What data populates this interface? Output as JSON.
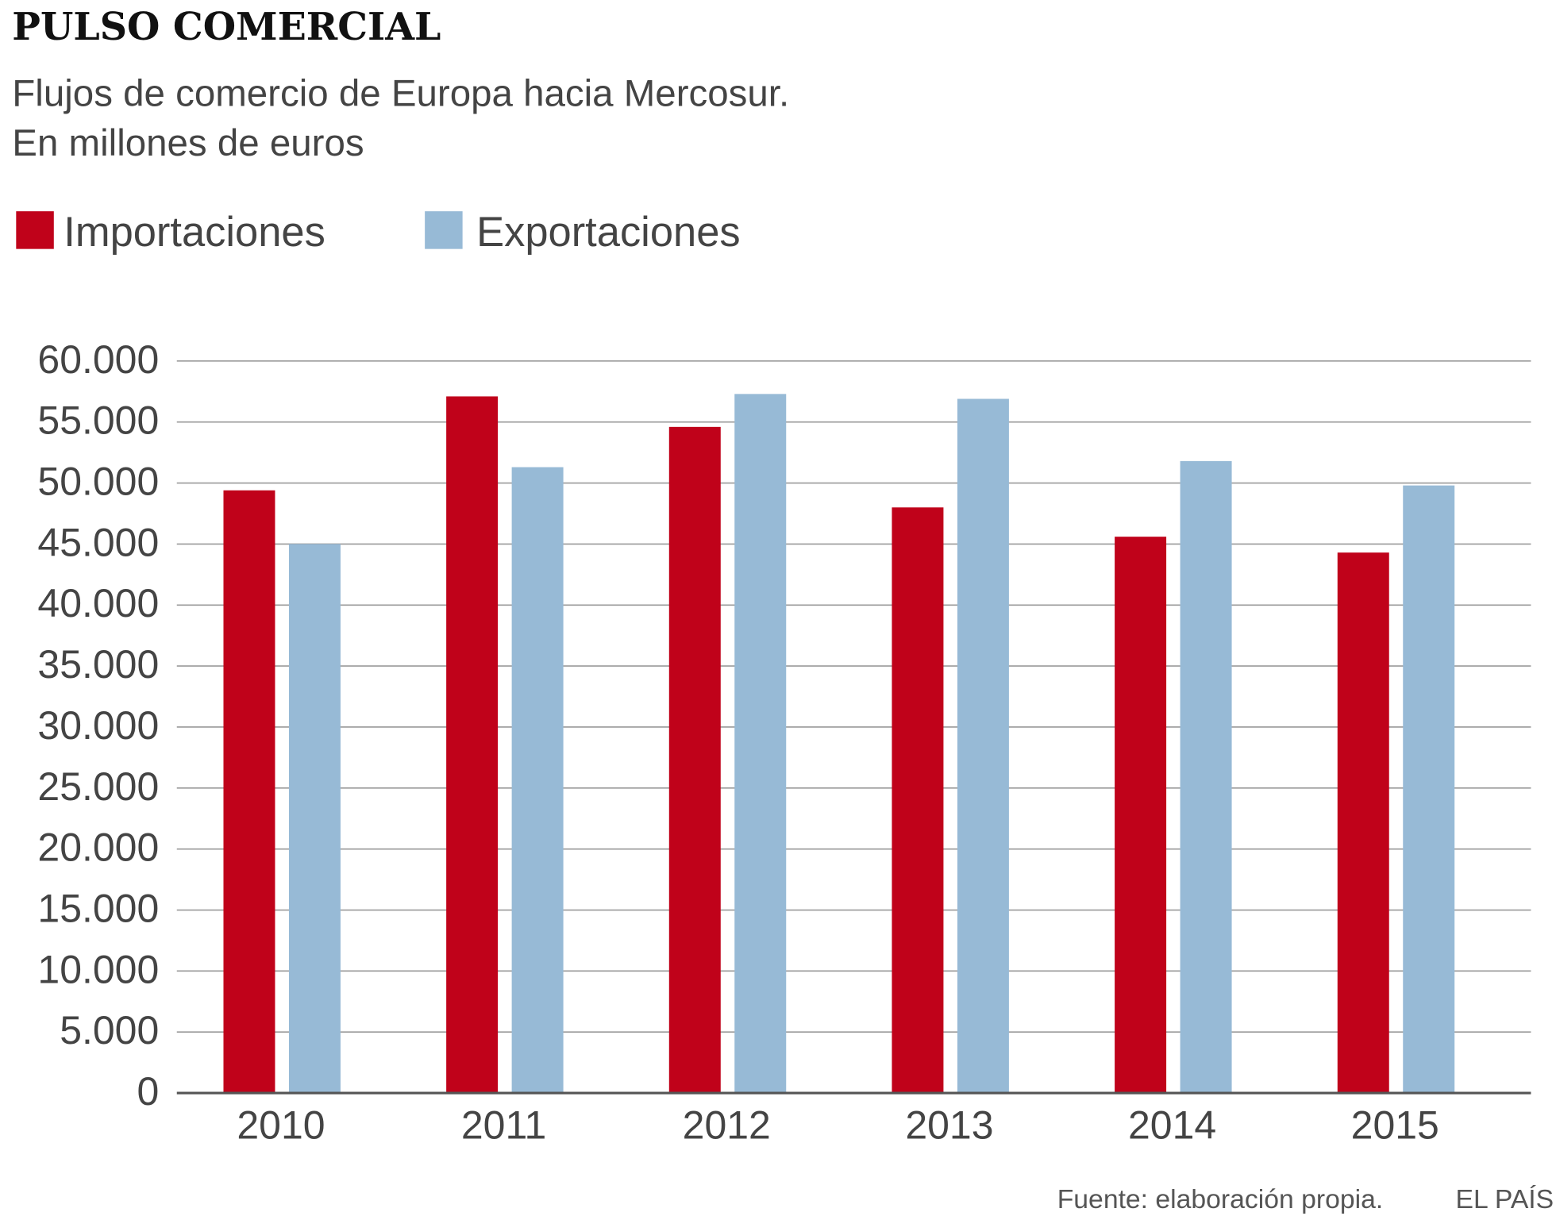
{
  "title": "PULSO COMERCIAL",
  "subtitle_line1": "Flujos de comercio de Europa hacia Mercosur.",
  "subtitle_line2": "En millones de euros",
  "source": "Fuente: elaboración propia.",
  "brand": "EL PAÍS",
  "colors": {
    "importaciones": "#c0021a",
    "exportaciones": "#97bad6",
    "grid": "#999999",
    "axis": "#555555"
  },
  "chart_data": {
    "type": "bar",
    "categories": [
      "2010",
      "2011",
      "2012",
      "2013",
      "2014",
      "2015"
    ],
    "series": [
      {
        "name": "Importaciones",
        "values": [
          49400,
          57100,
          54600,
          48000,
          45600,
          44300
        ]
      },
      {
        "name": "Exportaciones",
        "values": [
          45000,
          51300,
          57300,
          56900,
          51800,
          49800
        ]
      }
    ],
    "ylim": [
      0,
      60000
    ],
    "yticks": [
      "0",
      "5.000",
      "10.000",
      "15.000",
      "20.000",
      "25.000",
      "30.000",
      "35.000",
      "40.000",
      "45.000",
      "50.000",
      "55.000",
      "60.000"
    ],
    "grid": true,
    "legend": "top-left"
  }
}
